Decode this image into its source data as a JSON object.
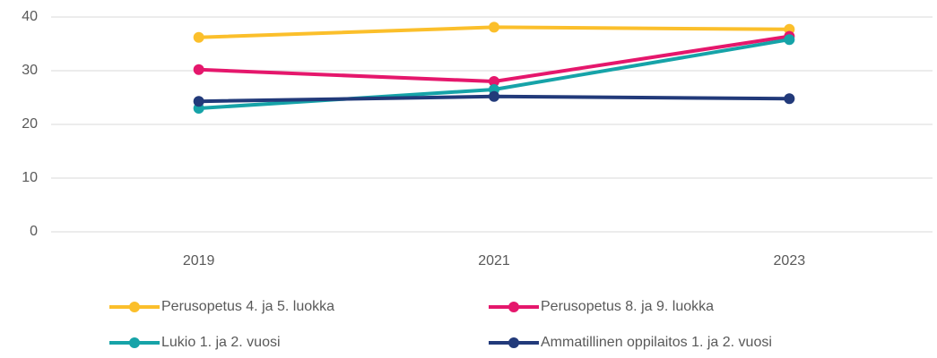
{
  "chart_data": {
    "type": "line",
    "categories": [
      "2019",
      "2021",
      "2023"
    ],
    "series": [
      {
        "name": "Perusopetus 4. ja 5. luokka",
        "color": "#fbbf2b",
        "values": [
          36.2,
          38.1,
          37.7
        ]
      },
      {
        "name": "Perusopetus 8. ja 9. luokka",
        "color": "#e5176c",
        "values": [
          30.2,
          28.0,
          36.4
        ]
      },
      {
        "name": "Lukio 1. ja 2. vuosi",
        "color": "#16a3a8",
        "values": [
          23.0,
          26.5,
          35.8
        ]
      },
      {
        "name": "Ammatillinen oppilaitos 1. ja 2. vuosi",
        "color": "#223a7a",
        "values": [
          24.3,
          25.2,
          24.8
        ]
      }
    ],
    "ylim": [
      0,
      40
    ],
    "yticks": [
      0,
      10,
      20,
      30,
      40
    ],
    "grid": true,
    "legend": "bottom"
  }
}
